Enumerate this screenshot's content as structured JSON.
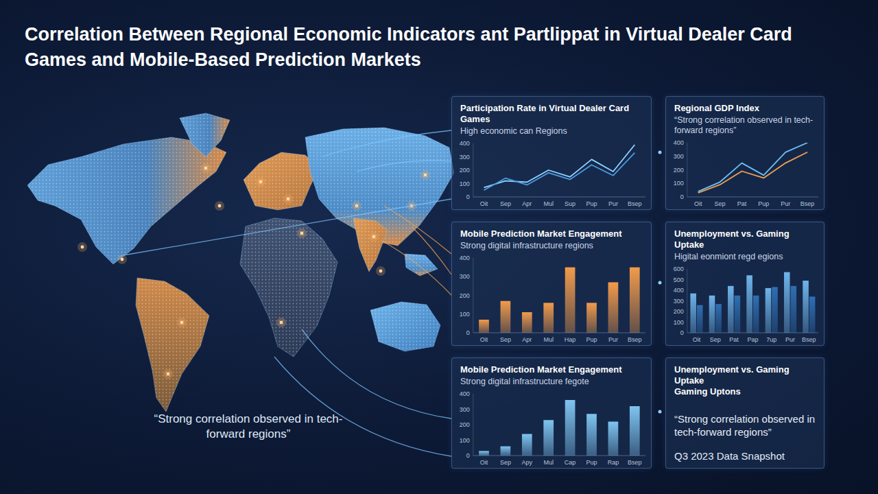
{
  "title": "Correlation Between Regional Economic Indicators ant Partlippat in Virtual Dealer Card Games and Mobile-Based Prediction Markets",
  "map_quote": "“Strong correlation observed in tech-forward regions”",
  "chart_data": [
    {
      "type": "line",
      "title": "Participation Rate in Virtual Dealer Card Games",
      "subtitle": "High economic can Regions",
      "categories": [
        "Oit",
        "Sep",
        "Apr",
        "Mul",
        "Sup",
        "Pup",
        "Pur",
        "Bsep"
      ],
      "series": [
        {
          "color": "#8fd3ff",
          "values": [
            70,
            120,
            110,
            200,
            150,
            280,
            190,
            390
          ]
        },
        {
          "color": "#4a9be0",
          "values": [
            50,
            140,
            90,
            180,
            130,
            240,
            160,
            330
          ]
        }
      ],
      "ylim": [
        0,
        400
      ],
      "yticks": [
        0,
        100,
        200,
        300,
        400
      ],
      "grid": false
    },
    {
      "type": "line",
      "title": "Regional GDP Index",
      "subtitle": "“Strong correlation observed in tech-forward regions”",
      "categories": [
        "Oit",
        "Sep",
        "Pat",
        "Pup",
        "Pur",
        "Bsep"
      ],
      "series": [
        {
          "color": "#6cc0f5",
          "values": [
            40,
            110,
            250,
            160,
            330,
            400
          ]
        },
        {
          "color": "#f0a050",
          "values": [
            30,
            90,
            190,
            140,
            250,
            330
          ]
        }
      ],
      "ylim": [
        0,
        400
      ],
      "yticks": [
        0,
        100,
        200,
        300,
        400
      ],
      "grid": false
    },
    {
      "type": "bar",
      "title": "Mobile Prediction Market Engagement",
      "subtitle": "Strong digital infrastructure regions",
      "categories": [
        "Oit",
        "Sep",
        "Apr",
        "Mul",
        "Hap",
        "Pup",
        "Pur",
        "Bsep"
      ],
      "values": [
        70,
        170,
        110,
        160,
        350,
        160,
        270,
        350
      ],
      "color": "#f29b4b",
      "ylim": [
        0,
        400
      ],
      "yticks": [
        0,
        100,
        200,
        300,
        400
      ],
      "grid": false
    },
    {
      "type": "bar",
      "title": "Unemployment vs. Gaming Uptake",
      "subtitle": "Higital eonmiont regd egions",
      "categories": [
        "Oit",
        "Sep",
        "Pat",
        "Pap",
        "7up",
        "Pur",
        "Bsep"
      ],
      "series": [
        {
          "color": "#6fb4ea",
          "values": [
            370,
            350,
            440,
            540,
            420,
            570,
            490
          ]
        },
        {
          "color": "#2f6fb3",
          "values": [
            260,
            270,
            350,
            350,
            430,
            440,
            340
          ]
        }
      ],
      "ylim": [
        0,
        600
      ],
      "yticks": [
        0,
        100,
        200,
        300,
        400,
        500,
        600
      ],
      "grid": false
    },
    {
      "type": "bar",
      "title": "Mobile Prediction Market Engagement",
      "subtitle": "Strong digital infrastructure fegote",
      "categories": [
        "Oit",
        "Sep",
        "Apy",
        "Mul",
        "Cap",
        "Pup",
        "Rap",
        "Bsep"
      ],
      "values": [
        30,
        60,
        140,
        230,
        360,
        270,
        220,
        320
      ],
      "color": "#7fc4f0",
      "ylim": [
        0,
        400
      ],
      "yticks": [
        0,
        100,
        200,
        300,
        400
      ],
      "grid": false
    }
  ],
  "note_panel": {
    "title": "Unemployment vs. Gaming Uptake",
    "subtitle": "Gaming Uptons",
    "quote": "“Strong correlation observed in tech-forward regions”",
    "footer": "Q3 2023 Data Snapshot"
  }
}
